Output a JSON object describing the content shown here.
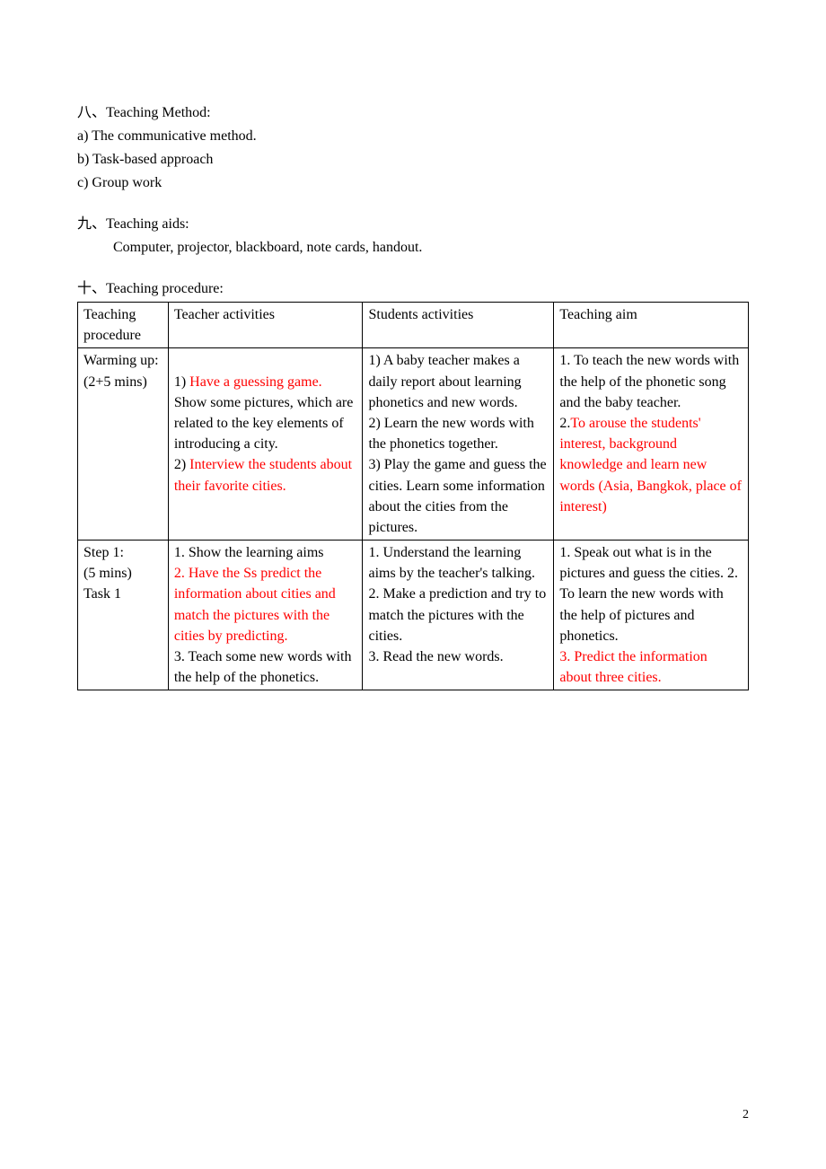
{
  "section8": {
    "heading": "八、Teaching Method:",
    "items": [
      "a) The communicative method.",
      "b) Task-based approach",
      "c) Group work"
    ]
  },
  "section9": {
    "heading": "九、Teaching aids:",
    "line": "Computer, projector, blackboard, note cards, handout."
  },
  "section10": {
    "heading": "十、Teaching procedure:"
  },
  "table": {
    "header": {
      "c1": "Teaching procedure",
      "c2": "Teacher activities",
      "c3": "Students activities",
      "c4": "Teaching aim"
    },
    "row1": {
      "c1": "Warming up:\n(2+5 mins)",
      "c2_prefix1": "1)   ",
      "c2_red1": "Have a guessing game.",
      "c2_mid": " Show some pictures, which are related to the key elements of introducing a city.",
      "c2_prefix2": "2)   ",
      "c2_red2": "Interview the students about their favorite cities.",
      "c3": "1) A baby teacher makes a daily report about learning phonetics and new words.\n2) Learn the new words with the phonetics together.\n3) Play the game and guess the cities. Learn some information about the cities from the pictures.",
      "c4_part1": "1. To teach the new words with the help of the phonetic song and the baby teacher.",
      "c4_prefix2": "2.",
      "c4_red": "To arouse the students' interest, background knowledge and learn new words (Asia, Bangkok, place of interest)"
    },
    "row2": {
      "c1": "Step 1:\n(5 mins)\nTask   1",
      "c2_part1": "1. Show the learning aims",
      "c2_red": "2. Have the Ss predict the information about cities and match the pictures with the cities by predicting.",
      "c2_part3": "3. Teach some new words with the help of the phonetics.",
      "c3": "1. Understand the learning aims by the teacher's talking.\n2. Make a prediction and try to match the pictures with the cities.\n3. Read the new words.",
      "c4_part1": "1. Speak out what is in the pictures and guess the cities. 2. To learn the new words with the help of pictures and phonetics.",
      "c4_red": "3. Predict the information about three cities."
    }
  },
  "pageNumber": "2",
  "colors": {
    "highlight": "#ff0000",
    "text": "#000000",
    "background": "#ffffff",
    "border": "#000000"
  },
  "typography": {
    "base_font_size_pt": 12,
    "font_family": "Times New Roman"
  }
}
